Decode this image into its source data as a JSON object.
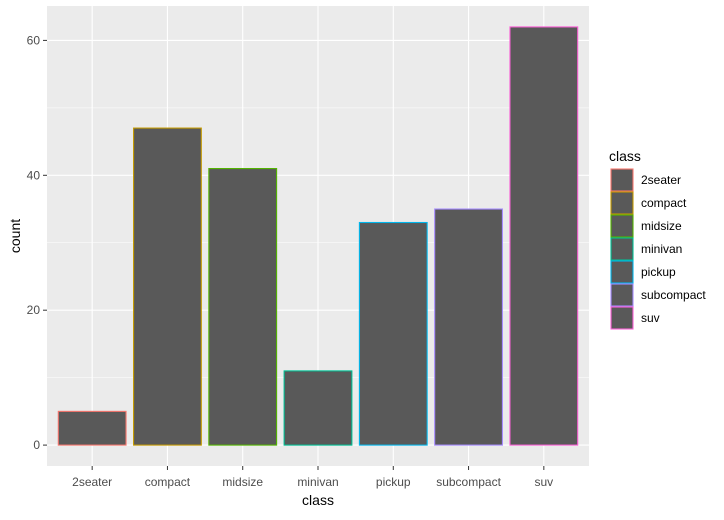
{
  "chart_data": {
    "type": "bar",
    "categories": [
      "2seater",
      "compact",
      "midsize",
      "minivan",
      "pickup",
      "subcompact",
      "suv"
    ],
    "values": [
      5,
      47,
      41,
      11,
      33,
      35,
      62
    ],
    "title": "",
    "xlabel": "class",
    "ylabel": "count",
    "ylim": [
      0,
      65
    ],
    "yticks": [
      0,
      20,
      40,
      60
    ],
    "grid": true,
    "bar_fill": "#595959",
    "outline_colors": [
      "#F8766D",
      "#C49A00",
      "#53B400",
      "#00C094",
      "#00B6EB",
      "#A58AFF",
      "#FB61D7"
    ],
    "panel_background": "#EBEBEB",
    "legend": {
      "title": "class",
      "placement": "right",
      "entries": [
        "2seater",
        "compact",
        "midsize",
        "minivan",
        "pickup",
        "subcompact",
        "suv"
      ]
    }
  }
}
